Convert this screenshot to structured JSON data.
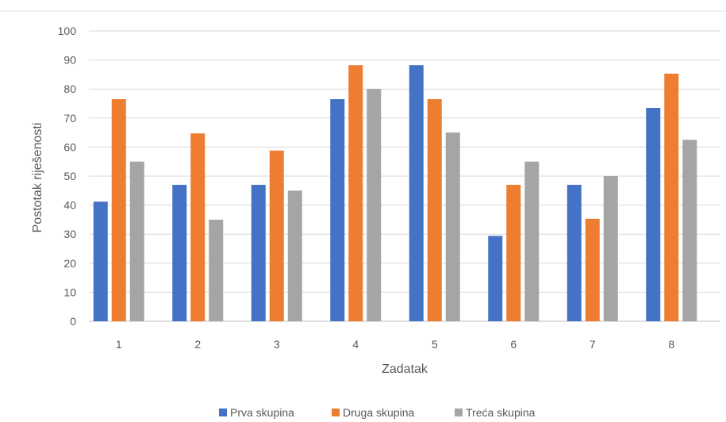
{
  "chart_data": {
    "type": "bar",
    "title": "",
    "xlabel": "Zadatak",
    "ylabel": "Postotak riješenosti",
    "categories": [
      "1",
      "2",
      "3",
      "4",
      "5",
      "6",
      "7",
      "8"
    ],
    "series": [
      {
        "name": "Prva skupina",
        "color": "#4472C4",
        "values": [
          41.2,
          47,
          47,
          76.5,
          88.2,
          29.4,
          47,
          73.5
        ]
      },
      {
        "name": "Druga skupina",
        "color": "#ED7D31",
        "values": [
          76.5,
          64.7,
          58.8,
          88.2,
          76.5,
          47,
          35.3,
          85.3
        ]
      },
      {
        "name": "Treća skupina",
        "color": "#A5A5A5",
        "values": [
          55,
          35,
          45,
          80,
          65,
          55,
          50,
          62.5
        ]
      }
    ],
    "ylim": [
      0,
      100
    ],
    "yticks": [
      0,
      10,
      20,
      30,
      40,
      50,
      60,
      70,
      80,
      90,
      100
    ],
    "grid": true,
    "legend_position": "bottom"
  }
}
